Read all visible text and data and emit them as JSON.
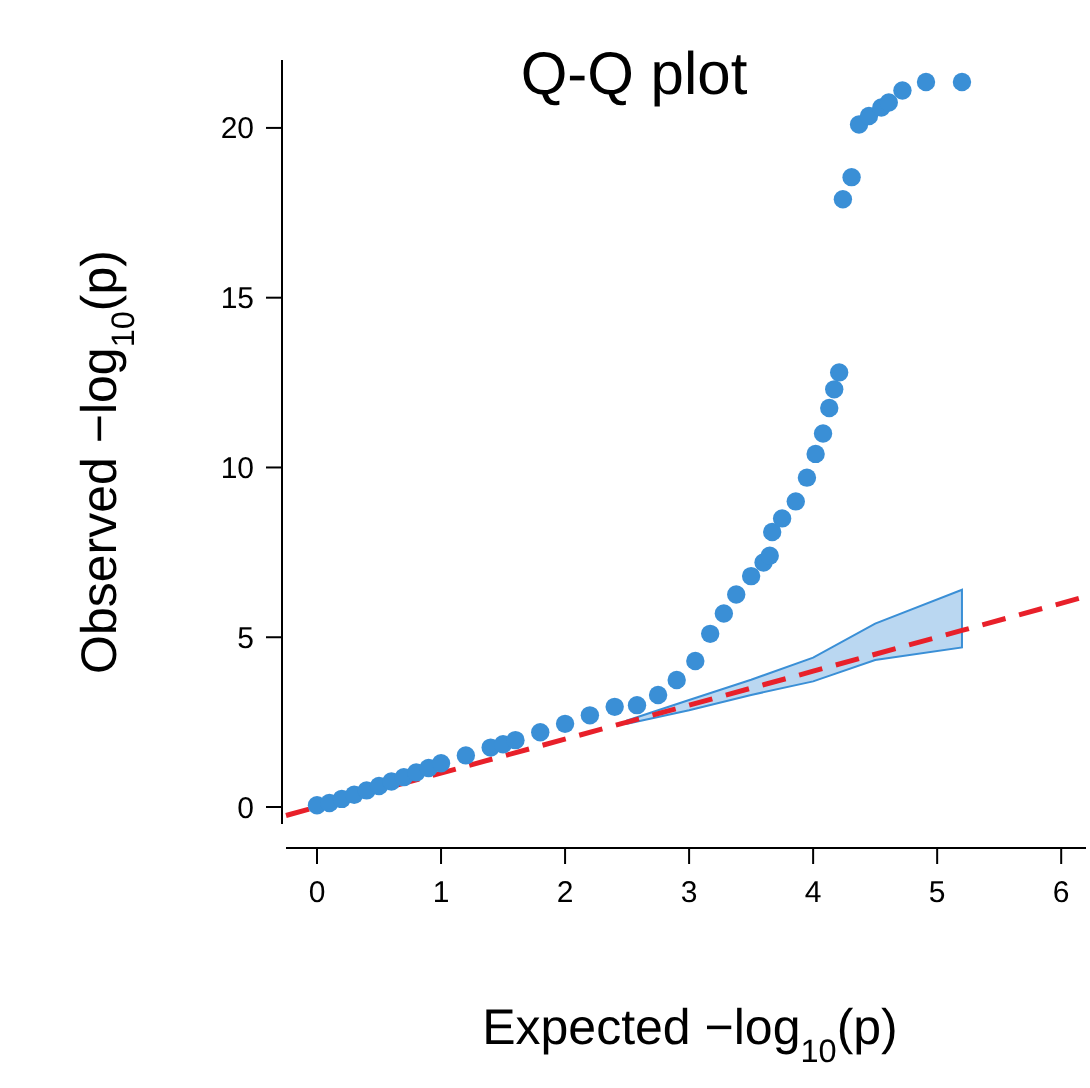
{
  "chart_data": {
    "type": "scatter",
    "title": "Q-Q plot",
    "xlabel": "Expected  −log$_{10}$(p)",
    "ylabel": "Observed  −log$_{10}$(p)",
    "xlim": [
      -0.25,
      6.2
    ],
    "ylim": [
      -0.5,
      22
    ],
    "xticks": [
      0,
      1,
      2,
      3,
      4,
      5,
      6
    ],
    "yticks": [
      0,
      5,
      10,
      15,
      20
    ],
    "grid": false,
    "marker": "circle",
    "series": [
      {
        "type": "line",
        "color": "#e8202a",
        "line_style": "dashed",
        "marker": "none",
        "x": [
          -0.25,
          2.5,
          3,
          3.5,
          4,
          4.5,
          5.2,
          6.2
        ],
        "values": [
          -0.25,
          2.5,
          3,
          3.5,
          4,
          4.5,
          5.2,
          6.2
        ],
        "lower": [
          null,
          2.45,
          2.85,
          3.3,
          3.7,
          4.33,
          4.7,
          null
        ],
        "upper": [
          null,
          2.55,
          3.15,
          3.75,
          4.4,
          5.4,
          6.4,
          null
        ]
      },
      {
        "color": "#3a8fd6",
        "x": [
          0,
          0.1,
          0.2,
          0.3,
          0.4,
          0.5,
          0.6,
          0.7,
          0.8,
          0.9,
          1,
          1.2,
          1.4,
          1.5,
          1.6,
          1.8,
          2,
          2.2,
          2.4,
          2.58,
          2.75,
          2.9,
          3.05,
          3.17,
          3.28,
          3.38,
          3.5,
          3.6,
          3.65,
          3.67,
          3.75,
          3.86,
          3.95,
          4.02,
          4.08,
          4.13,
          4.17,
          4.21,
          4.24,
          4.31,
          4.37,
          4.45,
          4.55,
          4.61,
          4.72,
          4.91,
          5.2
        ],
        "values": [
          0.05,
          0.12,
          0.24,
          0.36,
          0.49,
          0.62,
          0.75,
          0.88,
          1.02,
          1.15,
          1.29,
          1.52,
          1.75,
          1.85,
          1.97,
          2.2,
          2.45,
          2.7,
          2.95,
          3.0,
          3.3,
          3.74,
          4.3,
          5.1,
          5.7,
          6.26,
          6.8,
          7.2,
          7.4,
          8.1,
          8.5,
          9.0,
          9.7,
          10.4,
          11.0,
          11.75,
          12.3,
          12.8,
          17.9,
          18.55,
          20.1,
          20.35,
          20.6,
          20.75,
          21.1,
          21.35,
          21.35
        ]
      }
    ]
  }
}
